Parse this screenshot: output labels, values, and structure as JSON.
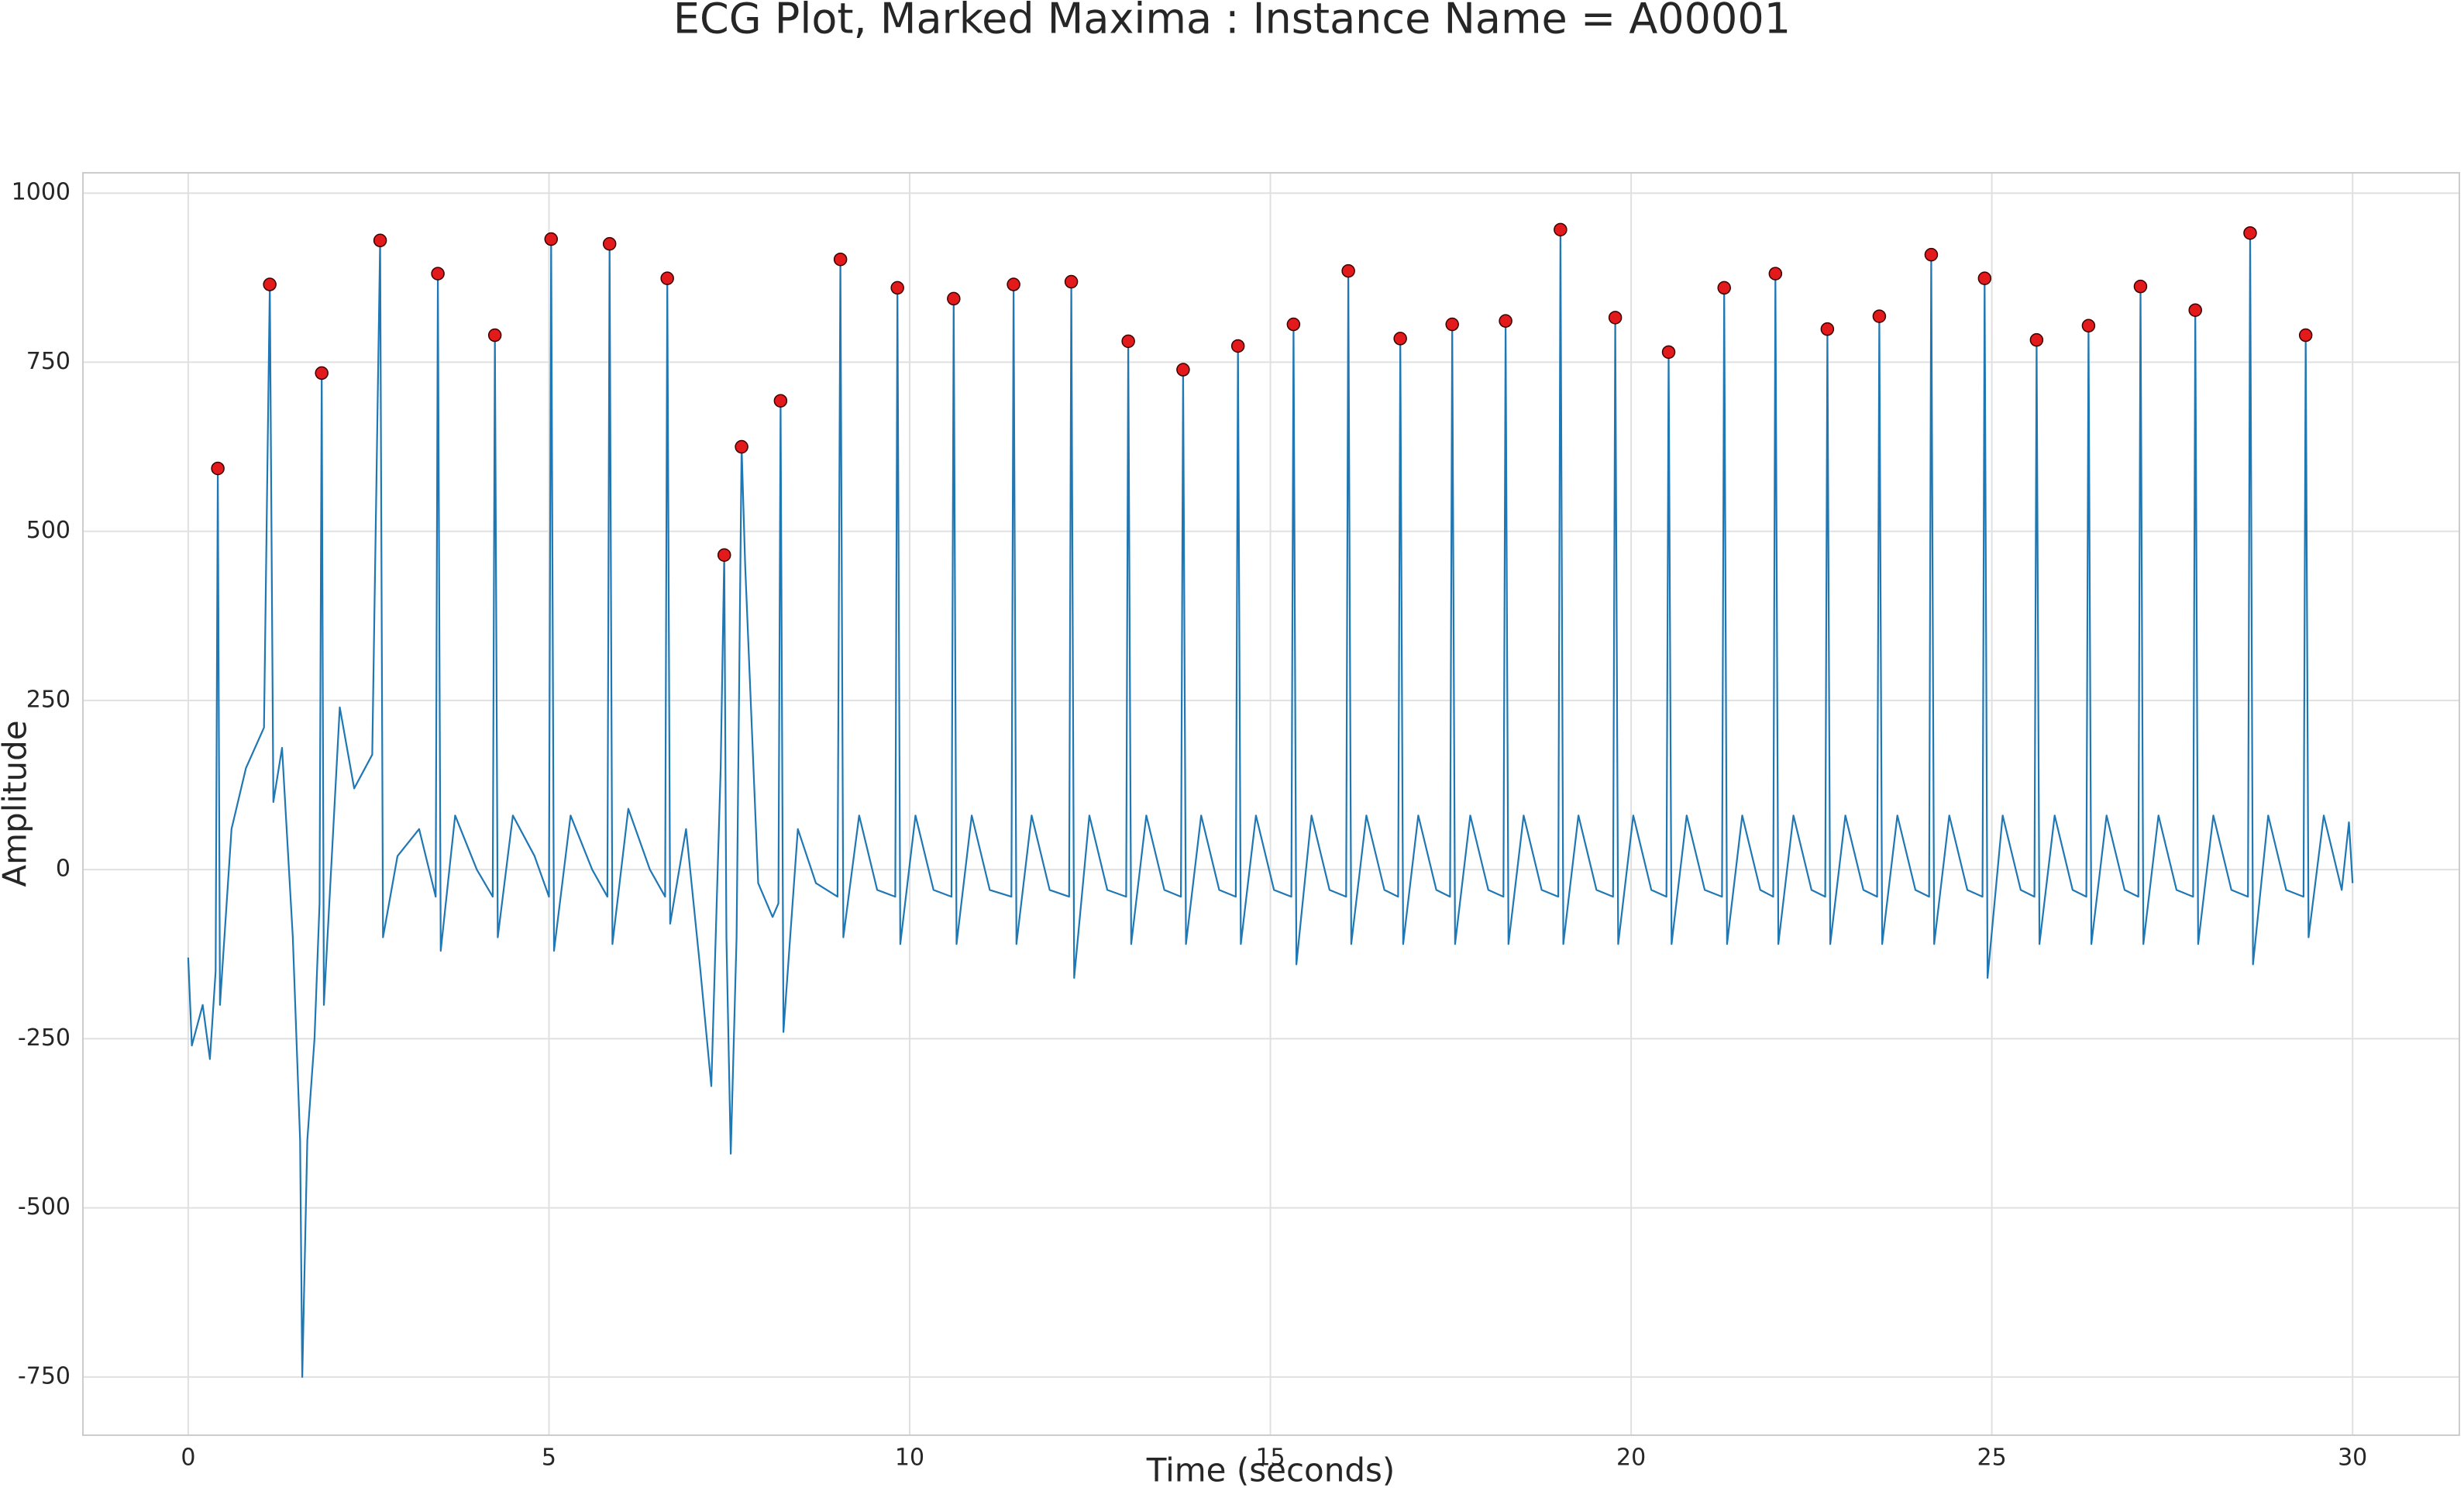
{
  "chart_data": {
    "type": "line",
    "title": "ECG Plot, Marked Maxima : Instance Name = A00001",
    "xlabel": "Time (seconds)",
    "ylabel": "Amplitude",
    "xlim": [
      -1.46,
      31.48
    ],
    "ylim": [
      -836,
      1030
    ],
    "xticks": [
      0,
      5,
      10,
      15,
      20,
      25,
      30
    ],
    "yticks": [
      -750,
      -500,
      -250,
      0,
      250,
      500,
      750,
      1000
    ],
    "grid": true,
    "series": [
      {
        "type": "line",
        "color": "#1f77b4",
        "x": [
          0,
          0.05,
          0.2,
          0.3,
          0.38,
          0.41,
          0.44,
          0.6,
          0.8,
          1.05,
          1.13,
          1.18,
          1.3,
          1.45,
          1.55,
          1.58,
          1.65,
          1.75,
          1.82,
          1.85,
          1.88,
          2.1,
          2.3,
          2.55,
          2.66,
          2.7,
          2.9,
          3.2,
          3.43,
          3.46,
          3.5,
          3.7,
          4.0,
          4.22,
          4.25,
          4.29,
          4.5,
          4.8,
          5.0,
          5.03,
          5.07,
          5.3,
          5.6,
          5.81,
          5.84,
          5.88,
          6.1,
          6.4,
          6.61,
          6.64,
          6.68,
          6.9,
          7.1,
          7.25,
          7.38,
          7.43,
          7.46,
          7.52,
          7.6,
          7.67,
          7.72,
          7.9,
          8.1,
          8.18,
          8.21,
          8.25,
          8.45,
          8.7,
          9.0,
          9.04,
          9.08,
          9.3,
          9.55,
          9.8,
          9.83,
          9.87,
          10.08,
          10.33,
          10.58,
          10.61,
          10.65,
          10.86,
          11.11,
          11.41,
          11.44,
          11.48,
          11.69,
          11.94,
          12.21,
          12.24,
          12.28,
          12.49,
          12.74,
          13.0,
          13.03,
          13.07,
          13.28,
          13.53,
          13.76,
          13.79,
          13.83,
          14.04,
          14.29,
          14.52,
          14.55,
          14.59,
          14.8,
          15.05,
          15.29,
          15.32,
          15.36,
          15.57,
          15.82,
          16.05,
          16.08,
          16.12,
          16.33,
          16.58,
          16.77,
          16.8,
          16.84,
          17.05,
          17.3,
          17.49,
          17.52,
          17.56,
          17.77,
          18.02,
          18.23,
          18.26,
          18.3,
          18.51,
          18.76,
          18.99,
          19.02,
          19.06,
          19.27,
          19.52,
          19.75,
          19.78,
          19.82,
          20.03,
          20.28,
          20.49,
          20.52,
          20.56,
          20.77,
          21.02,
          21.26,
          21.29,
          21.33,
          21.54,
          21.79,
          21.97,
          22.0,
          22.04,
          22.25,
          22.5,
          22.69,
          22.72,
          22.76,
          22.97,
          23.22,
          23.41,
          23.44,
          23.48,
          23.69,
          23.94,
          24.13,
          24.16,
          24.2,
          24.41,
          24.66,
          24.87,
          24.9,
          24.94,
          25.15,
          25.4,
          25.59,
          25.62,
          25.66,
          25.87,
          26.12,
          26.31,
          26.34,
          26.38,
          26.59,
          26.84,
          27.03,
          27.06,
          27.1,
          27.31,
          27.56,
          27.79,
          27.82,
          27.86,
          28.07,
          28.32,
          28.55,
          28.58,
          28.62,
          28.83,
          29.08,
          29.32,
          29.35,
          29.39,
          29.6,
          29.85,
          29.95,
          30.0
        ],
        "values": [
          -130,
          -260,
          -200,
          -280,
          -150,
          593,
          -200,
          60,
          150,
          210,
          865,
          100,
          180,
          -100,
          -400,
          -750,
          -400,
          -250,
          -50,
          734,
          -200,
          240,
          120,
          170,
          930,
          -100,
          20,
          60,
          -40,
          881,
          -120,
          80,
          0,
          -40,
          790,
          -100,
          80,
          20,
          -40,
          932,
          -120,
          80,
          0,
          -40,
          925,
          -110,
          90,
          0,
          -40,
          874,
          -80,
          60,
          -150,
          -320,
          150,
          465,
          -100,
          -420,
          -100,
          625,
          450,
          -20,
          -70,
          -50,
          693,
          -240,
          60,
          -20,
          -40,
          902,
          -100,
          80,
          -30,
          -40,
          860,
          -110,
          80,
          -30,
          -40,
          844,
          -110,
          80,
          -30,
          -40,
          865,
          -110,
          80,
          -30,
          -40,
          869,
          -160,
          80,
          -30,
          -40,
          781,
          -110,
          80,
          -30,
          -40,
          739,
          -110,
          80,
          -30,
          -40,
          774,
          -110,
          80,
          -30,
          -40,
          806,
          -140,
          80,
          -30,
          -40,
          885,
          -110,
          80,
          -30,
          -40,
          785,
          -110,
          80,
          -30,
          -40,
          806,
          -110,
          80,
          -30,
          -40,
          811,
          -110,
          80,
          -30,
          -40,
          946,
          -110,
          80,
          -30,
          -40,
          816,
          -110,
          80,
          -30,
          -40,
          765,
          -110,
          80,
          -30,
          -40,
          860,
          -110,
          80,
          -30,
          -40,
          881,
          -110,
          80,
          -30,
          -40,
          799,
          -110,
          80,
          -30,
          -40,
          818,
          -110,
          80,
          -30,
          -40,
          909,
          -110,
          80,
          -30,
          -40,
          874,
          -160,
          80,
          -30,
          -40,
          783,
          -110,
          80,
          -30,
          -40,
          804,
          -110,
          80,
          -30,
          -40,
          862,
          -110,
          80,
          -30,
          -40,
          827,
          -110,
          80,
          -30,
          -40,
          941,
          -140,
          80,
          -30,
          -40,
          790,
          -100,
          80,
          -30,
          70,
          -20
        ]
      },
      {
        "type": "scatter",
        "color": "#e31a1c",
        "x": [
          0.41,
          1.13,
          1.85,
          2.66,
          3.46,
          4.25,
          5.03,
          5.84,
          6.64,
          7.43,
          7.67,
          8.21,
          9.04,
          9.83,
          10.61,
          11.44,
          12.24,
          13.03,
          13.79,
          14.55,
          15.32,
          16.08,
          16.8,
          17.52,
          18.26,
          19.02,
          19.78,
          20.52,
          21.29,
          22.0,
          22.72,
          23.44,
          24.16,
          24.9,
          25.62,
          26.34,
          27.06,
          27.82,
          28.58,
          29.35
        ],
        "values": [
          593,
          865,
          734,
          930,
          881,
          790,
          932,
          925,
          874,
          465,
          625,
          693,
          902,
          860,
          844,
          865,
          869,
          781,
          739,
          774,
          806,
          885,
          785,
          806,
          811,
          946,
          816,
          765,
          860,
          881,
          799,
          818,
          909,
          874,
          783,
          804,
          862,
          827,
          941,
          790
        ]
      }
    ]
  }
}
